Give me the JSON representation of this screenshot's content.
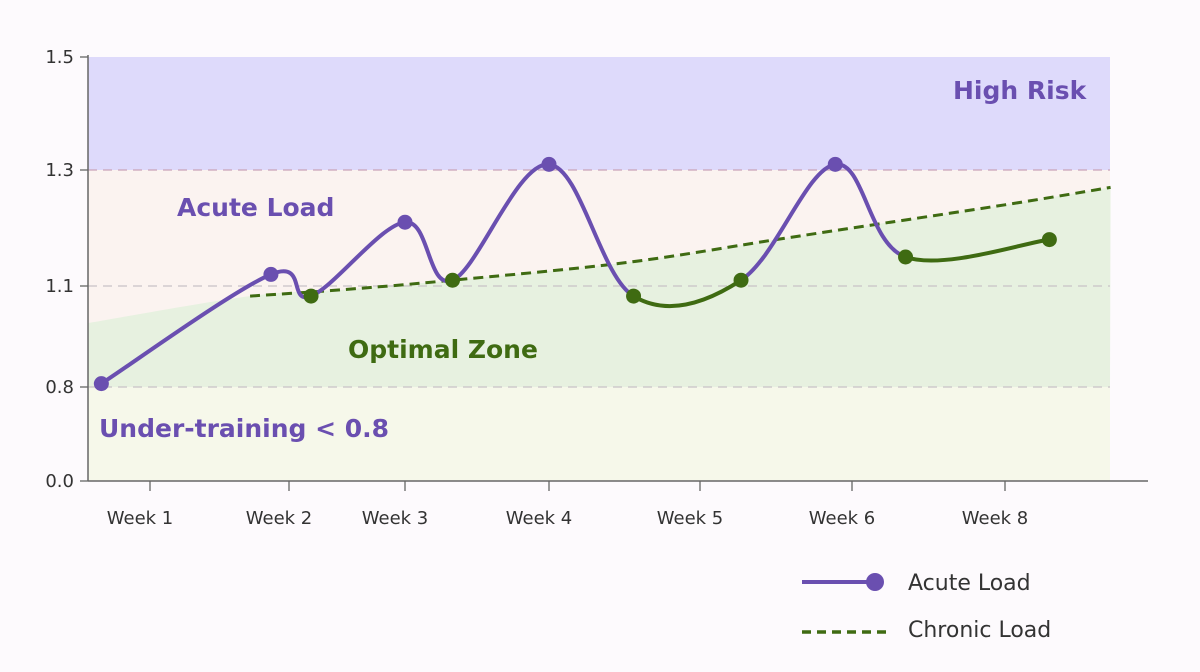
{
  "chart_data": {
    "type": "line",
    "title": "",
    "xlabel": "",
    "ylabel": "",
    "x_tick_labels": [
      "Week 1",
      "Week 2",
      "Week 3",
      "Week 4",
      "Week 5",
      "Week 6",
      "Week 8"
    ],
    "y_ticks": [
      0.0,
      0.8,
      1.1,
      1.3,
      1.5
    ],
    "y_tick_labels": [
      "0.0",
      "0.8",
      "1.1",
      "1.3",
      "1.5"
    ],
    "ylim": [
      0.0,
      1.5
    ],
    "grid": "dashed horizontal at 0.8, 1.1, 1.3",
    "zones": [
      {
        "label": "High Risk",
        "from": 1.3,
        "to": 1.5,
        "color": "#dedafb",
        "label_color": "#6a4fb0"
      },
      {
        "label": "Acute Load",
        "color": "#fbf3f0",
        "label_color": "#6a4fb0"
      },
      {
        "label": "Optimal Zone",
        "color": "#e7f1e0",
        "label_color": "#3f6b12"
      },
      {
        "label": "Under-training < 0.8",
        "from": 0.0,
        "to": 0.8,
        "color": "#f6f8ea",
        "label_color": "#6a4fb0"
      }
    ],
    "series": [
      {
        "name": "Acute Load",
        "style": "solid-with-markers",
        "color": "#6a4fb0",
        "alt_color": "#3f6b12",
        "x": [
          0.65,
          1.87,
          2.19,
          3.0,
          3.33,
          4.0,
          4.56,
          5.27,
          5.89,
          6.35,
          7.29
        ],
        "y": [
          0.81,
          1.12,
          1.07,
          1.21,
          1.11,
          1.31,
          1.07,
          1.11,
          1.31,
          1.15,
          1.18
        ],
        "marker_colors": [
          "purple",
          "purple",
          "green",
          "purple",
          "green",
          "purple",
          "green",
          "green",
          "purple",
          "green",
          "green"
        ],
        "segment_colors": [
          "purple",
          "purple",
          "purple",
          "purple",
          "purple",
          "purple",
          "green",
          "purple",
          "purple",
          "green"
        ]
      },
      {
        "name": "Chronic Load",
        "style": "dashed",
        "color": "#3f6b12",
        "x": [
          1.72,
          2.5,
          3.33,
          4.5,
          5.5,
          6.0,
          7.0,
          7.69
        ],
        "y": [
          1.07,
          1.09,
          1.11,
          1.14,
          1.18,
          1.2,
          1.24,
          1.27
        ]
      }
    ],
    "legend": {
      "position": "bottom-right",
      "entries": [
        "Acute Load",
        "Chronic Load"
      ]
    }
  }
}
